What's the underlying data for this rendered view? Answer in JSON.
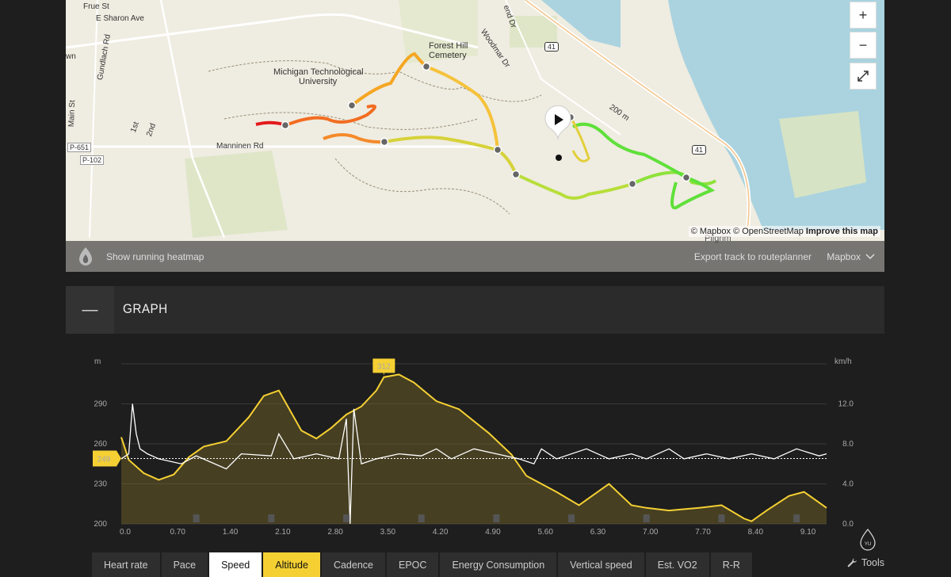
{
  "map": {
    "labels": {
      "frue": "Frue St",
      "sharon": "E Sharon Ave",
      "own": "wn",
      "gundlach": "Gundlach Rd",
      "first": "1st",
      "second": "2nd",
      "main": "Main St",
      "university_line1": "Michigan Technological",
      "university_line2": "University",
      "cemetery_line1": "Forest Hill",
      "cemetery_line2": "Cemetery",
      "woodmar": "Woodmar Dr",
      "manninen": "Manninen Rd",
      "p651": "P-651",
      "p102": "P-102",
      "us41_top": "41",
      "us41_mid": "41",
      "pilgrim": "Pilgrim",
      "route_200": "200 m",
      "end_dr": "end Dr"
    },
    "zoom_in": "+",
    "zoom_out": "−",
    "fullscreen": "⤢",
    "attribution_plain": "© Mapbox © OpenStreetMap",
    "attribution_link": "Improve this map",
    "heatmap_label": "Show running heatmap",
    "export_label": "Export track to routeplanner",
    "provider_label": "Mapbox"
  },
  "graph": {
    "collapse": "—",
    "title": "GRAPH",
    "left_unit": "m",
    "right_unit": "km/h",
    "left_ticks": [
      "290",
      "260",
      "230",
      "200"
    ],
    "right_ticks": [
      "12.0",
      "8.0",
      "4.0",
      "0.0"
    ],
    "x_ticks": [
      "0.0",
      "0.70",
      "1.40",
      "2.10",
      "2.80",
      "3.50",
      "4.20",
      "4.90",
      "5.60",
      "6.30",
      "7.00",
      "7.70",
      "8.40",
      "9.10"
    ],
    "max_badge": "312",
    "current_badge": "249"
  },
  "chart_data": {
    "type": "area",
    "xlabel": "",
    "ylabel": "m",
    "y2label": "km/h",
    "x_range": [
      0,
      9.4
    ],
    "ylim": [
      200,
      320
    ],
    "y2lim": [
      0,
      16
    ],
    "series": [
      {
        "type": "area",
        "axis": "left",
        "color": "#f5d033",
        "x": [
          0.0,
          0.1,
          0.3,
          0.5,
          0.7,
          0.9,
          1.1,
          1.4,
          1.7,
          1.9,
          2.1,
          2.2,
          2.4,
          2.6,
          2.8,
          3.0,
          3.2,
          3.4,
          3.5,
          3.7,
          3.9,
          4.2,
          4.5,
          4.9,
          5.2,
          5.4,
          5.6,
          5.8,
          6.1,
          6.3,
          6.5,
          6.8,
          7.0,
          7.3,
          7.7,
          8.0,
          8.3,
          8.4,
          8.6,
          8.9,
          9.1,
          9.4
        ],
        "values": [
          265,
          248,
          238,
          233,
          237,
          250,
          258,
          262,
          280,
          296,
          300,
          290,
          270,
          264,
          272,
          282,
          288,
          300,
          310,
          312,
          306,
          292,
          286,
          268,
          252,
          236,
          230,
          224,
          214,
          222,
          230,
          214,
          212,
          210,
          212,
          214,
          204,
          202,
          210,
          221,
          224,
          212
        ]
      },
      {
        "type": "line",
        "axis": "right",
        "color": "#ffffff",
        "x": [
          0.0,
          0.1,
          0.15,
          0.2,
          0.25,
          0.35,
          0.5,
          0.8,
          1.0,
          1.4,
          1.6,
          2.0,
          2.1,
          2.3,
          2.6,
          2.9,
          3.0,
          3.05,
          3.1,
          3.2,
          3.4,
          3.7,
          4.0,
          4.2,
          4.4,
          4.7,
          5.0,
          5.3,
          5.5,
          5.6,
          5.8,
          6.2,
          6.5,
          6.8,
          7.0,
          7.3,
          7.5,
          7.8,
          8.1,
          8.4,
          8.7,
          9.0,
          9.3,
          9.4
        ],
        "values": [
          6.5,
          7.0,
          12.0,
          9.0,
          7.5,
          7.0,
          6.5,
          6.0,
          6.8,
          5.5,
          7.0,
          6.8,
          9.0,
          6.5,
          7.0,
          6.5,
          10.5,
          0.0,
          11.5,
          6.0,
          6.5,
          7.0,
          6.8,
          7.5,
          6.5,
          7.5,
          7.0,
          6.5,
          6.0,
          7.5,
          6.5,
          7.5,
          6.5,
          7.0,
          6.5,
          7.5,
          6.5,
          7.0,
          6.5,
          7.0,
          6.5,
          7.5,
          6.8,
          7.0
        ]
      }
    ]
  },
  "tabs": [
    {
      "label": "Heart rate",
      "state": "normal"
    },
    {
      "label": "Pace",
      "state": "normal"
    },
    {
      "label": "Speed",
      "state": "white"
    },
    {
      "label": "Altitude",
      "state": "yellow"
    },
    {
      "label": "Cadence",
      "state": "normal"
    },
    {
      "label": "EPOC",
      "state": "normal"
    },
    {
      "label": "Energy Consumption",
      "state": "normal"
    },
    {
      "label": "Vertical speed",
      "state": "normal"
    },
    {
      "label": "Est. VO2",
      "state": "normal"
    },
    {
      "label": "R-R",
      "state": "normal"
    }
  ],
  "tools_label": "Tools",
  "badge_text": "YU"
}
